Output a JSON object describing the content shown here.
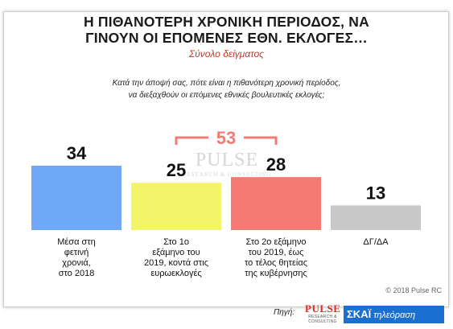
{
  "header": {
    "title_line1": "Η ΠΙΘΑΝΟΤΕΡΗ ΧΡΟΝΙΚΗ ΠΕΡΙΟΔΟΣ, ΝΑ",
    "title_line2": "ΓΙΝΟΥΝ ΟΙ ΕΠΟΜΕΝΕΣ ΕΘΝ. ΕΚΛΟΓΕΣ…",
    "subtitle": "Σύνολο δείγματος",
    "question_line1": "Κατά την άποψή σας, πότε είναι η πιθανότερη χρονική περίοδος,",
    "question_line2": "να διεξαχθούν οι επόμενες εθνικές βουλευτικές εκλογές;"
  },
  "watermark": {
    "main": "PULSE",
    "sub": "RESEARCH & CONSULTING"
  },
  "chart_data": {
    "type": "bar",
    "categories": [
      [
        "Μέσα στη",
        "φετινή",
        "χρονιά,",
        "στο 2018"
      ],
      [
        "Στο 1ο",
        "εξάμηνο του",
        "2019, κοντά στις",
        "ευρωεκλογές"
      ],
      [
        "Στο 2ο εξάμηνο",
        "του 2019, έως",
        "το τέλος θητείας",
        "της κυβέρνησης"
      ],
      [
        "ΔΓ/ΔΑ"
      ]
    ],
    "values": [
      34,
      25,
      28,
      13
    ],
    "value_labels": [
      "34",
      "25",
      "28",
      "13"
    ],
    "colors": [
      "#6ea8f7",
      "#f4f46a",
      "#f47b72",
      "#c8c8c8"
    ],
    "bracket": {
      "from": 1,
      "to": 2,
      "label": "53",
      "color": "#f47b72"
    },
    "ylim": [
      0,
      40
    ],
    "grid": false,
    "legend": "none"
  },
  "footer": {
    "copyright": "© 2018 Pulse RC",
    "source_label": "Πηγή:",
    "pulse_logo": "PULSE",
    "pulse_logo_sub": "RESEARCH & CONSULTING",
    "skai_logo": "ΣΚΑΪ",
    "skai_logo_sub": "τηλεόραση"
  }
}
